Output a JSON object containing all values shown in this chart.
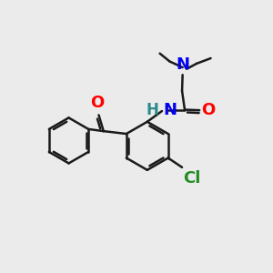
{
  "background_color": "#ebebeb",
  "bond_color": "#1a1a1a",
  "bond_width": 1.8,
  "atom_colors": {
    "O": "#ff0000",
    "N_amide": "#2e8b8b",
    "N_amine": "#0000ee",
    "Cl": "#228b22",
    "H": "#2e8b8b"
  },
  "font_size": 13
}
